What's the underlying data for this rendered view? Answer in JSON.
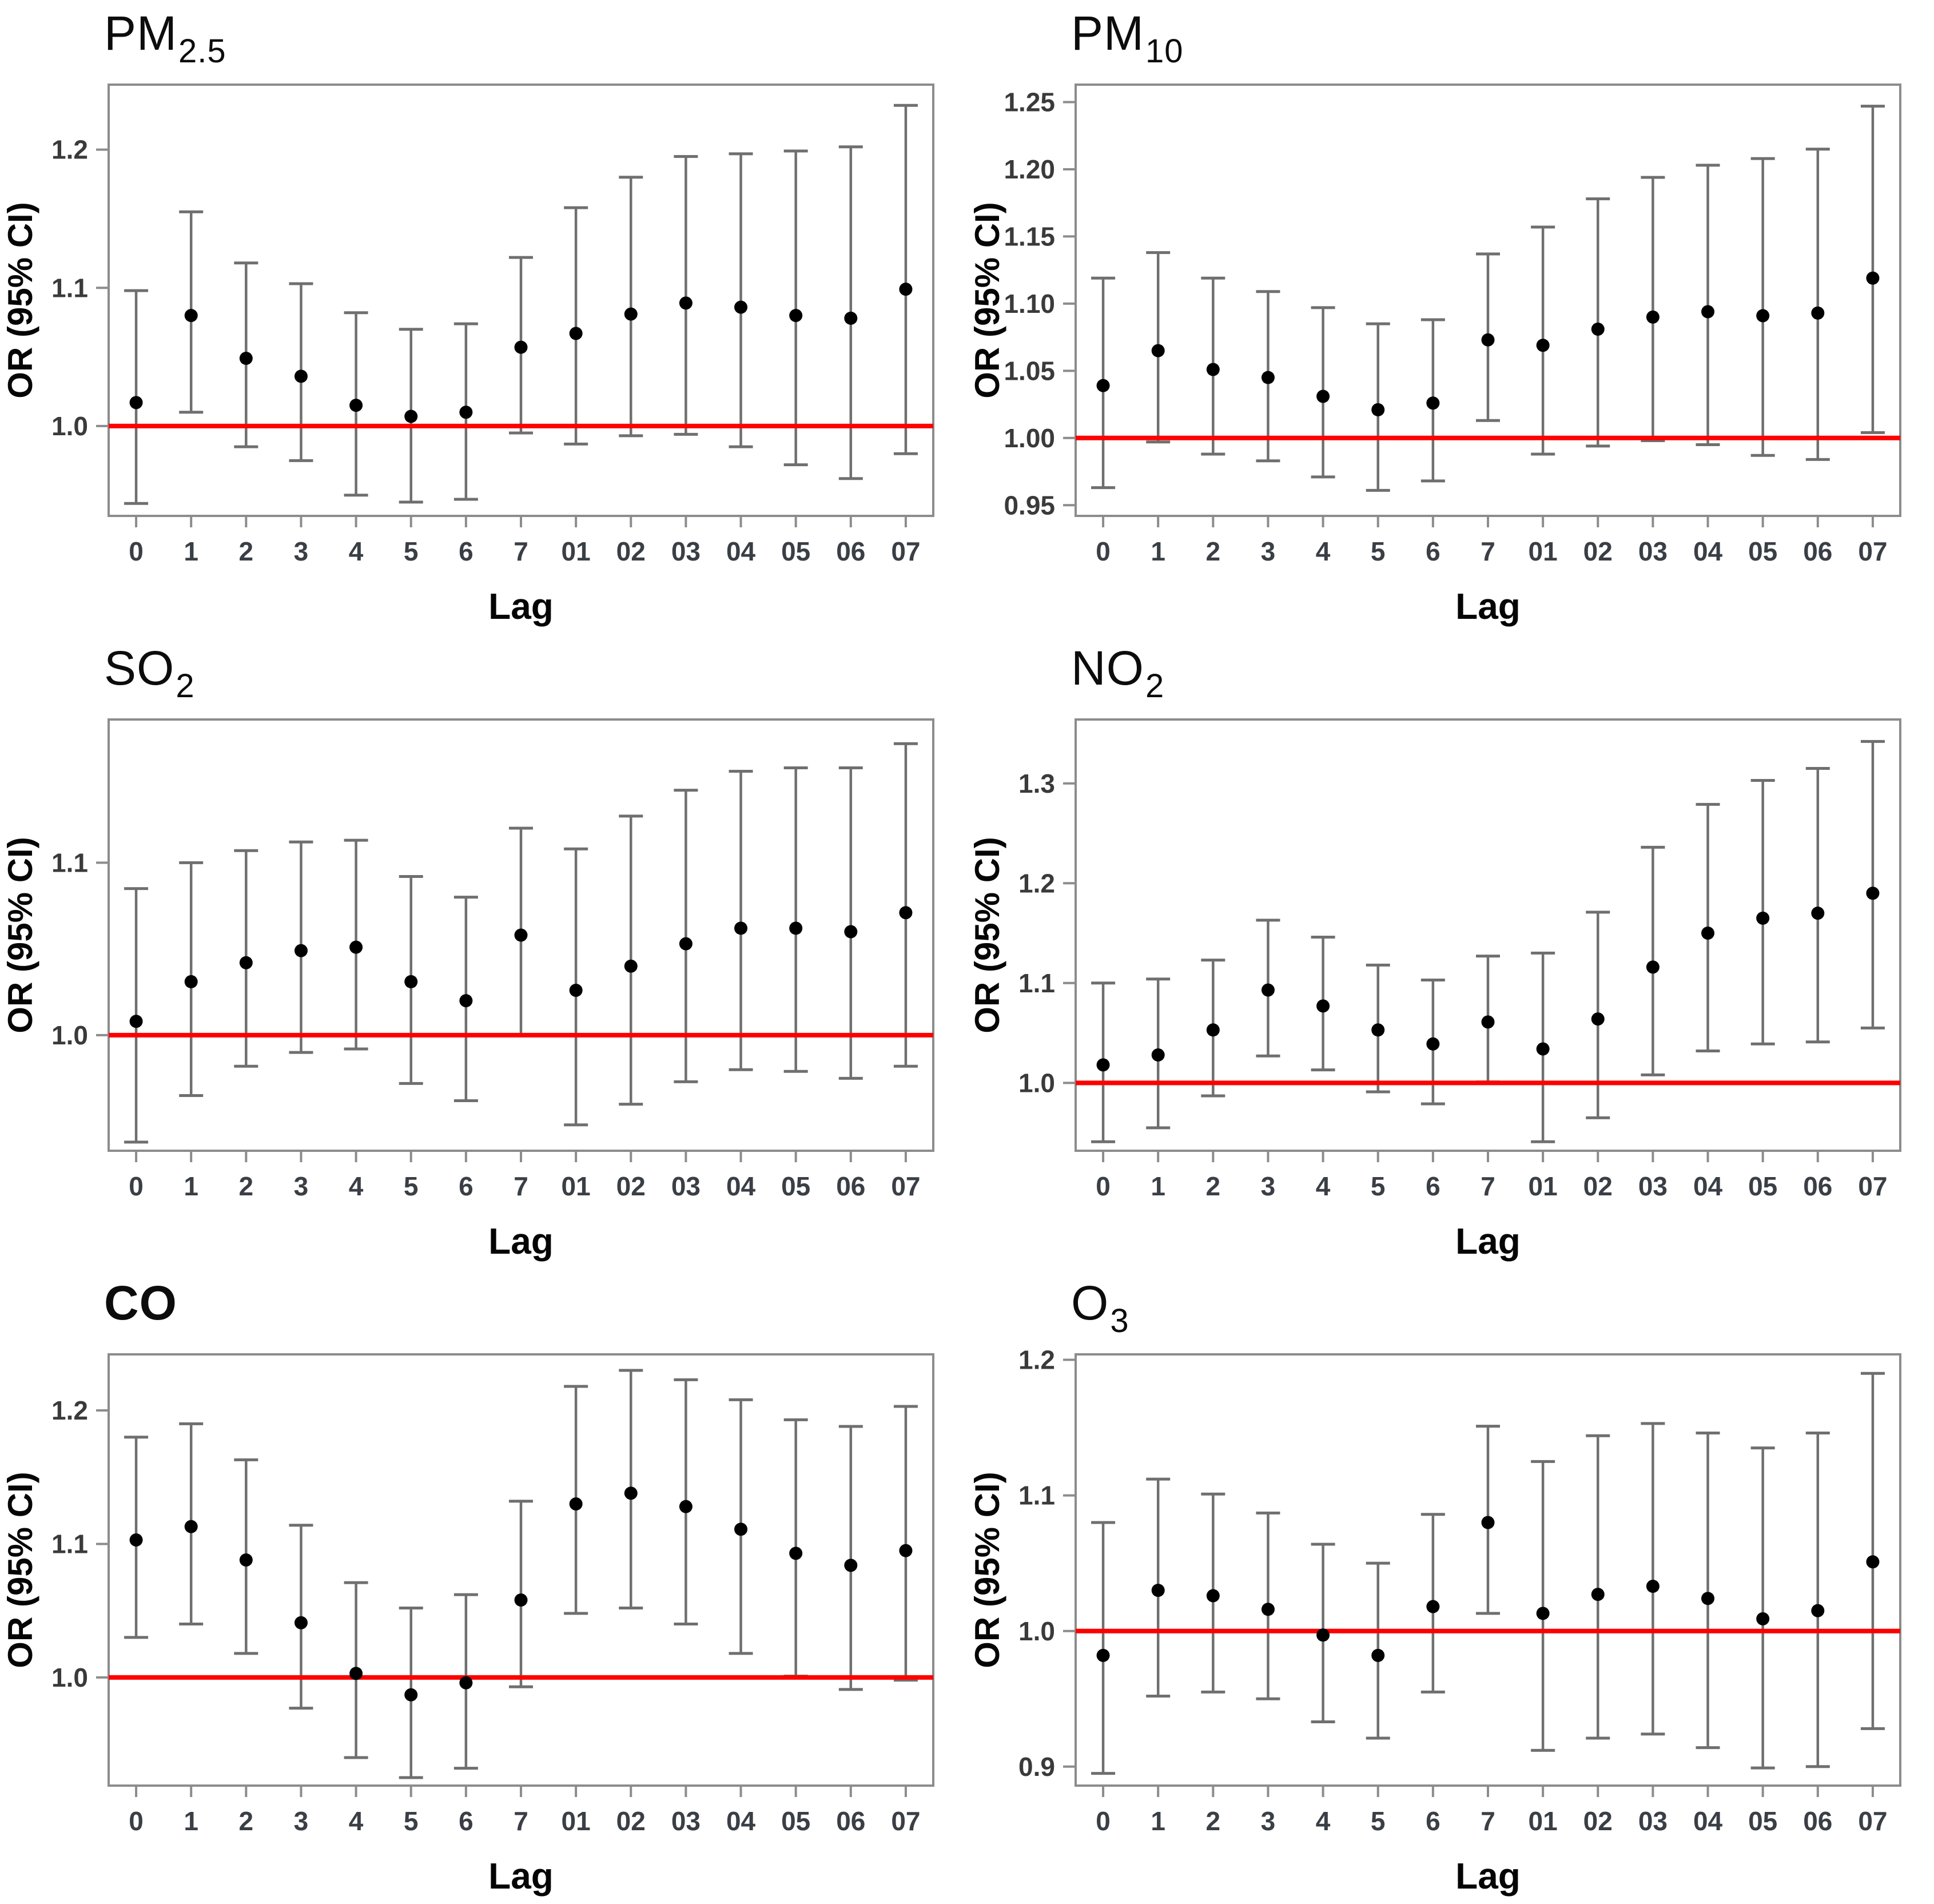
{
  "figure": {
    "kind": "forest-plot-grid",
    "panels_order": [
      "PM2.5",
      "PM10",
      "SO2",
      "NO2",
      "CO",
      "O3"
    ],
    "colors": {
      "reference_line": "#FF0000",
      "point": "#000000",
      "whisker": "#6F6F6F",
      "plot_border": "#8C8C8C",
      "tick_text": "#3A3A3A"
    }
  },
  "chart_data": [
    {
      "type": "scatter",
      "subtype": "point-estimates-with-95ci",
      "title_main": "PM",
      "title_sub": "2.5",
      "title_bold": false,
      "xlabel": "Lag",
      "ylabel": "OR (95% CI)",
      "categories": [
        "0",
        "1",
        "2",
        "3",
        "4",
        "5",
        "6",
        "7",
        "01",
        "02",
        "03",
        "04",
        "05",
        "06",
        "07"
      ],
      "ytick_labels": [
        "1.0",
        "1.1",
        "1.2"
      ],
      "yticks": [
        1.0,
        1.1,
        1.2
      ],
      "ylim": [
        0.935,
        1.247
      ],
      "ref_line": 1.0,
      "grid": false,
      "points": [
        {
          "lag": "0",
          "or": 1.017,
          "lo": 0.944,
          "hi": 1.098
        },
        {
          "lag": "1",
          "or": 1.08,
          "lo": 1.01,
          "hi": 1.155
        },
        {
          "lag": "2",
          "or": 1.049,
          "lo": 0.985,
          "hi": 1.118
        },
        {
          "lag": "3",
          "or": 1.036,
          "lo": 0.975,
          "hi": 1.103
        },
        {
          "lag": "4",
          "or": 1.015,
          "lo": 0.95,
          "hi": 1.082
        },
        {
          "lag": "5",
          "or": 1.007,
          "lo": 0.945,
          "hi": 1.07
        },
        {
          "lag": "6",
          "or": 1.01,
          "lo": 0.947,
          "hi": 1.074
        },
        {
          "lag": "7",
          "or": 1.057,
          "lo": 0.995,
          "hi": 1.122
        },
        {
          "lag": "01",
          "or": 1.067,
          "lo": 0.987,
          "hi": 1.158
        },
        {
          "lag": "02",
          "or": 1.081,
          "lo": 0.993,
          "hi": 1.18
        },
        {
          "lag": "03",
          "or": 1.089,
          "lo": 0.994,
          "hi": 1.195
        },
        {
          "lag": "04",
          "or": 1.086,
          "lo": 0.985,
          "hi": 1.197
        },
        {
          "lag": "05",
          "or": 1.08,
          "lo": 0.972,
          "hi": 1.199
        },
        {
          "lag": "06",
          "or": 1.078,
          "lo": 0.962,
          "hi": 1.202
        },
        {
          "lag": "07",
          "or": 1.099,
          "lo": 0.98,
          "hi": 1.232
        }
      ]
    },
    {
      "type": "scatter",
      "subtype": "point-estimates-with-95ci",
      "title_main": "PM",
      "title_sub": "10",
      "title_bold": false,
      "xlabel": "Lag",
      "ylabel": "OR (95% CI)",
      "categories": [
        "0",
        "1",
        "2",
        "3",
        "4",
        "5",
        "6",
        "7",
        "01",
        "02",
        "03",
        "04",
        "05",
        "06",
        "07"
      ],
      "ytick_labels": [
        "0.95",
        "1.00",
        "1.05",
        "1.10",
        "1.15",
        "1.20",
        "1.25"
      ],
      "yticks": [
        0.95,
        1.0,
        1.05,
        1.1,
        1.15,
        1.2,
        1.25
      ],
      "ylim": [
        0.942,
        1.263
      ],
      "ref_line": 1.0,
      "grid": false,
      "points": [
        {
          "lag": "0",
          "or": 1.039,
          "lo": 0.963,
          "hi": 1.119
        },
        {
          "lag": "1",
          "or": 1.065,
          "lo": 0.997,
          "hi": 1.138
        },
        {
          "lag": "2",
          "or": 1.051,
          "lo": 0.988,
          "hi": 1.119
        },
        {
          "lag": "3",
          "or": 1.045,
          "lo": 0.983,
          "hi": 1.109
        },
        {
          "lag": "4",
          "or": 1.031,
          "lo": 0.971,
          "hi": 1.097
        },
        {
          "lag": "5",
          "or": 1.021,
          "lo": 0.961,
          "hi": 1.085
        },
        {
          "lag": "6",
          "or": 1.026,
          "lo": 0.968,
          "hi": 1.088
        },
        {
          "lag": "7",
          "or": 1.073,
          "lo": 1.013,
          "hi": 1.137
        },
        {
          "lag": "01",
          "or": 1.069,
          "lo": 0.988,
          "hi": 1.157
        },
        {
          "lag": "02",
          "or": 1.081,
          "lo": 0.994,
          "hi": 1.178
        },
        {
          "lag": "03",
          "or": 1.09,
          "lo": 0.998,
          "hi": 1.194
        },
        {
          "lag": "04",
          "or": 1.094,
          "lo": 0.995,
          "hi": 1.203
        },
        {
          "lag": "05",
          "or": 1.091,
          "lo": 0.987,
          "hi": 1.208
        },
        {
          "lag": "06",
          "or": 1.093,
          "lo": 0.984,
          "hi": 1.215
        },
        {
          "lag": "07",
          "or": 1.119,
          "lo": 1.004,
          "hi": 1.247
        }
      ]
    },
    {
      "type": "scatter",
      "subtype": "point-estimates-with-95ci",
      "title_main": "SO",
      "title_sub": "2",
      "title_bold": false,
      "xlabel": "Lag",
      "ylabel": "OR (95% CI)",
      "categories": [
        "0",
        "1",
        "2",
        "3",
        "4",
        "5",
        "6",
        "7",
        "01",
        "02",
        "03",
        "04",
        "05",
        "06",
        "07"
      ],
      "ytick_labels": [
        "1.0",
        "1.1"
      ],
      "yticks": [
        1.0,
        1.1
      ],
      "ylim": [
        0.933,
        1.183
      ],
      "ref_line": 1.0,
      "grid": false,
      "points": [
        {
          "lag": "0",
          "or": 1.008,
          "lo": 0.938,
          "hi": 1.085
        },
        {
          "lag": "1",
          "or": 1.031,
          "lo": 0.965,
          "hi": 1.1
        },
        {
          "lag": "2",
          "or": 1.042,
          "lo": 0.982,
          "hi": 1.107
        },
        {
          "lag": "3",
          "or": 1.049,
          "lo": 0.99,
          "hi": 1.112
        },
        {
          "lag": "4",
          "or": 1.051,
          "lo": 0.992,
          "hi": 1.113
        },
        {
          "lag": "5",
          "or": 1.031,
          "lo": 0.972,
          "hi": 1.092
        },
        {
          "lag": "6",
          "or": 1.02,
          "lo": 0.962,
          "hi": 1.08
        },
        {
          "lag": "7",
          "or": 1.058,
          "lo": 1.0,
          "hi": 1.12
        },
        {
          "lag": "01",
          "or": 1.026,
          "lo": 0.948,
          "hi": 1.108
        },
        {
          "lag": "02",
          "or": 1.04,
          "lo": 0.96,
          "hi": 1.127
        },
        {
          "lag": "03",
          "or": 1.053,
          "lo": 0.973,
          "hi": 1.142
        },
        {
          "lag": "04",
          "or": 1.062,
          "lo": 0.98,
          "hi": 1.153
        },
        {
          "lag": "05",
          "or": 1.062,
          "lo": 0.979,
          "hi": 1.155
        },
        {
          "lag": "06",
          "or": 1.06,
          "lo": 0.975,
          "hi": 1.155
        },
        {
          "lag": "07",
          "or": 1.071,
          "lo": 0.982,
          "hi": 1.169
        }
      ]
    },
    {
      "type": "scatter",
      "subtype": "point-estimates-with-95ci",
      "title_main": "NO",
      "title_sub": "2",
      "title_bold": false,
      "xlabel": "Lag",
      "ylabel": "OR (95% CI)",
      "categories": [
        "0",
        "1",
        "2",
        "3",
        "4",
        "5",
        "6",
        "7",
        "01",
        "02",
        "03",
        "04",
        "05",
        "06",
        "07"
      ],
      "ytick_labels": [
        "1.0",
        "1.1",
        "1.2",
        "1.3"
      ],
      "yticks": [
        1.0,
        1.1,
        1.2,
        1.3
      ],
      "ylim": [
        0.932,
        1.364
      ],
      "ref_line": 1.0,
      "grid": false,
      "points": [
        {
          "lag": "0",
          "or": 1.018,
          "lo": 0.941,
          "hi": 1.1
        },
        {
          "lag": "1",
          "or": 1.028,
          "lo": 0.955,
          "hi": 1.104
        },
        {
          "lag": "2",
          "or": 1.053,
          "lo": 0.987,
          "hi": 1.123
        },
        {
          "lag": "3",
          "or": 1.093,
          "lo": 1.027,
          "hi": 1.163
        },
        {
          "lag": "4",
          "or": 1.077,
          "lo": 1.013,
          "hi": 1.146
        },
        {
          "lag": "5",
          "or": 1.053,
          "lo": 0.991,
          "hi": 1.118
        },
        {
          "lag": "6",
          "or": 1.039,
          "lo": 0.979,
          "hi": 1.103
        },
        {
          "lag": "7",
          "or": 1.061,
          "lo": 1.001,
          "hi": 1.127
        },
        {
          "lag": "01",
          "or": 1.034,
          "lo": 0.941,
          "hi": 1.13
        },
        {
          "lag": "02",
          "or": 1.064,
          "lo": 0.965,
          "hi": 1.171
        },
        {
          "lag": "03",
          "or": 1.116,
          "lo": 1.008,
          "hi": 1.236
        },
        {
          "lag": "04",
          "or": 1.15,
          "lo": 1.032,
          "hi": 1.279
        },
        {
          "lag": "05",
          "or": 1.165,
          "lo": 1.039,
          "hi": 1.303
        },
        {
          "lag": "06",
          "or": 1.17,
          "lo": 1.041,
          "hi": 1.315
        },
        {
          "lag": "07",
          "or": 1.19,
          "lo": 1.055,
          "hi": 1.342
        }
      ]
    },
    {
      "type": "scatter",
      "subtype": "point-estimates-with-95ci",
      "title_main": "CO",
      "title_sub": "",
      "title_bold": true,
      "xlabel": "Lag",
      "ylabel": "OR (95% CI)",
      "categories": [
        "0",
        "1",
        "2",
        "3",
        "4",
        "5",
        "6",
        "7",
        "01",
        "02",
        "03",
        "04",
        "05",
        "06",
        "07"
      ],
      "ytick_labels": [
        "1.0",
        "1.1",
        "1.2"
      ],
      "yticks": [
        1.0,
        1.1,
        1.2
      ],
      "ylim": [
        0.919,
        1.242
      ],
      "ref_line": 1.0,
      "grid": false,
      "points": [
        {
          "lag": "0",
          "or": 1.103,
          "lo": 1.03,
          "hi": 1.18
        },
        {
          "lag": "1",
          "or": 1.113,
          "lo": 1.04,
          "hi": 1.19
        },
        {
          "lag": "2",
          "or": 1.088,
          "lo": 1.018,
          "hi": 1.163
        },
        {
          "lag": "3",
          "or": 1.041,
          "lo": 0.977,
          "hi": 1.114
        },
        {
          "lag": "4",
          "or": 1.003,
          "lo": 0.94,
          "hi": 1.071
        },
        {
          "lag": "5",
          "or": 0.987,
          "lo": 0.925,
          "hi": 1.052
        },
        {
          "lag": "6",
          "or": 0.996,
          "lo": 0.932,
          "hi": 1.062
        },
        {
          "lag": "7",
          "or": 1.058,
          "lo": 0.993,
          "hi": 1.132
        },
        {
          "lag": "01",
          "or": 1.13,
          "lo": 1.048,
          "hi": 1.218
        },
        {
          "lag": "02",
          "or": 1.138,
          "lo": 1.052,
          "hi": 1.23
        },
        {
          "lag": "03",
          "or": 1.128,
          "lo": 1.04,
          "hi": 1.223
        },
        {
          "lag": "04",
          "or": 1.111,
          "lo": 1.018,
          "hi": 1.208
        },
        {
          "lag": "05",
          "or": 1.093,
          "lo": 1.001,
          "hi": 1.193
        },
        {
          "lag": "06",
          "or": 1.084,
          "lo": 0.991,
          "hi": 1.188
        },
        {
          "lag": "07",
          "or": 1.095,
          "lo": 0.998,
          "hi": 1.203
        }
      ]
    },
    {
      "type": "scatter",
      "subtype": "point-estimates-with-95ci",
      "title_main": "O",
      "title_sub": "3",
      "title_bold": false,
      "xlabel": "Lag",
      "ylabel": "OR (95% CI)",
      "categories": [
        "0",
        "1",
        "2",
        "3",
        "4",
        "5",
        "6",
        "7",
        "01",
        "02",
        "03",
        "04",
        "05",
        "06",
        "07"
      ],
      "ytick_labels": [
        "0.9",
        "1.0",
        "1.1",
        "1.2"
      ],
      "yticks": [
        0.9,
        1.0,
        1.1,
        1.2
      ],
      "ylim": [
        0.886,
        1.204
      ],
      "ref_line": 1.0,
      "grid": false,
      "points": [
        {
          "lag": "0",
          "or": 0.982,
          "lo": 0.895,
          "hi": 1.08
        },
        {
          "lag": "1",
          "or": 1.03,
          "lo": 0.952,
          "hi": 1.112
        },
        {
          "lag": "2",
          "or": 1.026,
          "lo": 0.955,
          "hi": 1.101
        },
        {
          "lag": "3",
          "or": 1.016,
          "lo": 0.95,
          "hi": 1.087
        },
        {
          "lag": "4",
          "or": 0.997,
          "lo": 0.933,
          "hi": 1.064
        },
        {
          "lag": "5",
          "or": 0.982,
          "lo": 0.921,
          "hi": 1.05
        },
        {
          "lag": "6",
          "or": 1.018,
          "lo": 0.955,
          "hi": 1.086
        },
        {
          "lag": "7",
          "or": 1.08,
          "lo": 1.013,
          "hi": 1.151
        },
        {
          "lag": "01",
          "or": 1.013,
          "lo": 0.912,
          "hi": 1.125
        },
        {
          "lag": "02",
          "or": 1.027,
          "lo": 0.921,
          "hi": 1.144
        },
        {
          "lag": "03",
          "or": 1.033,
          "lo": 0.924,
          "hi": 1.153
        },
        {
          "lag": "04",
          "or": 1.024,
          "lo": 0.914,
          "hi": 1.146
        },
        {
          "lag": "05",
          "or": 1.009,
          "lo": 0.899,
          "hi": 1.135
        },
        {
          "lag": "06",
          "or": 1.015,
          "lo": 0.9,
          "hi": 1.146
        },
        {
          "lag": "07",
          "or": 1.051,
          "lo": 0.928,
          "hi": 1.19
        }
      ]
    }
  ]
}
